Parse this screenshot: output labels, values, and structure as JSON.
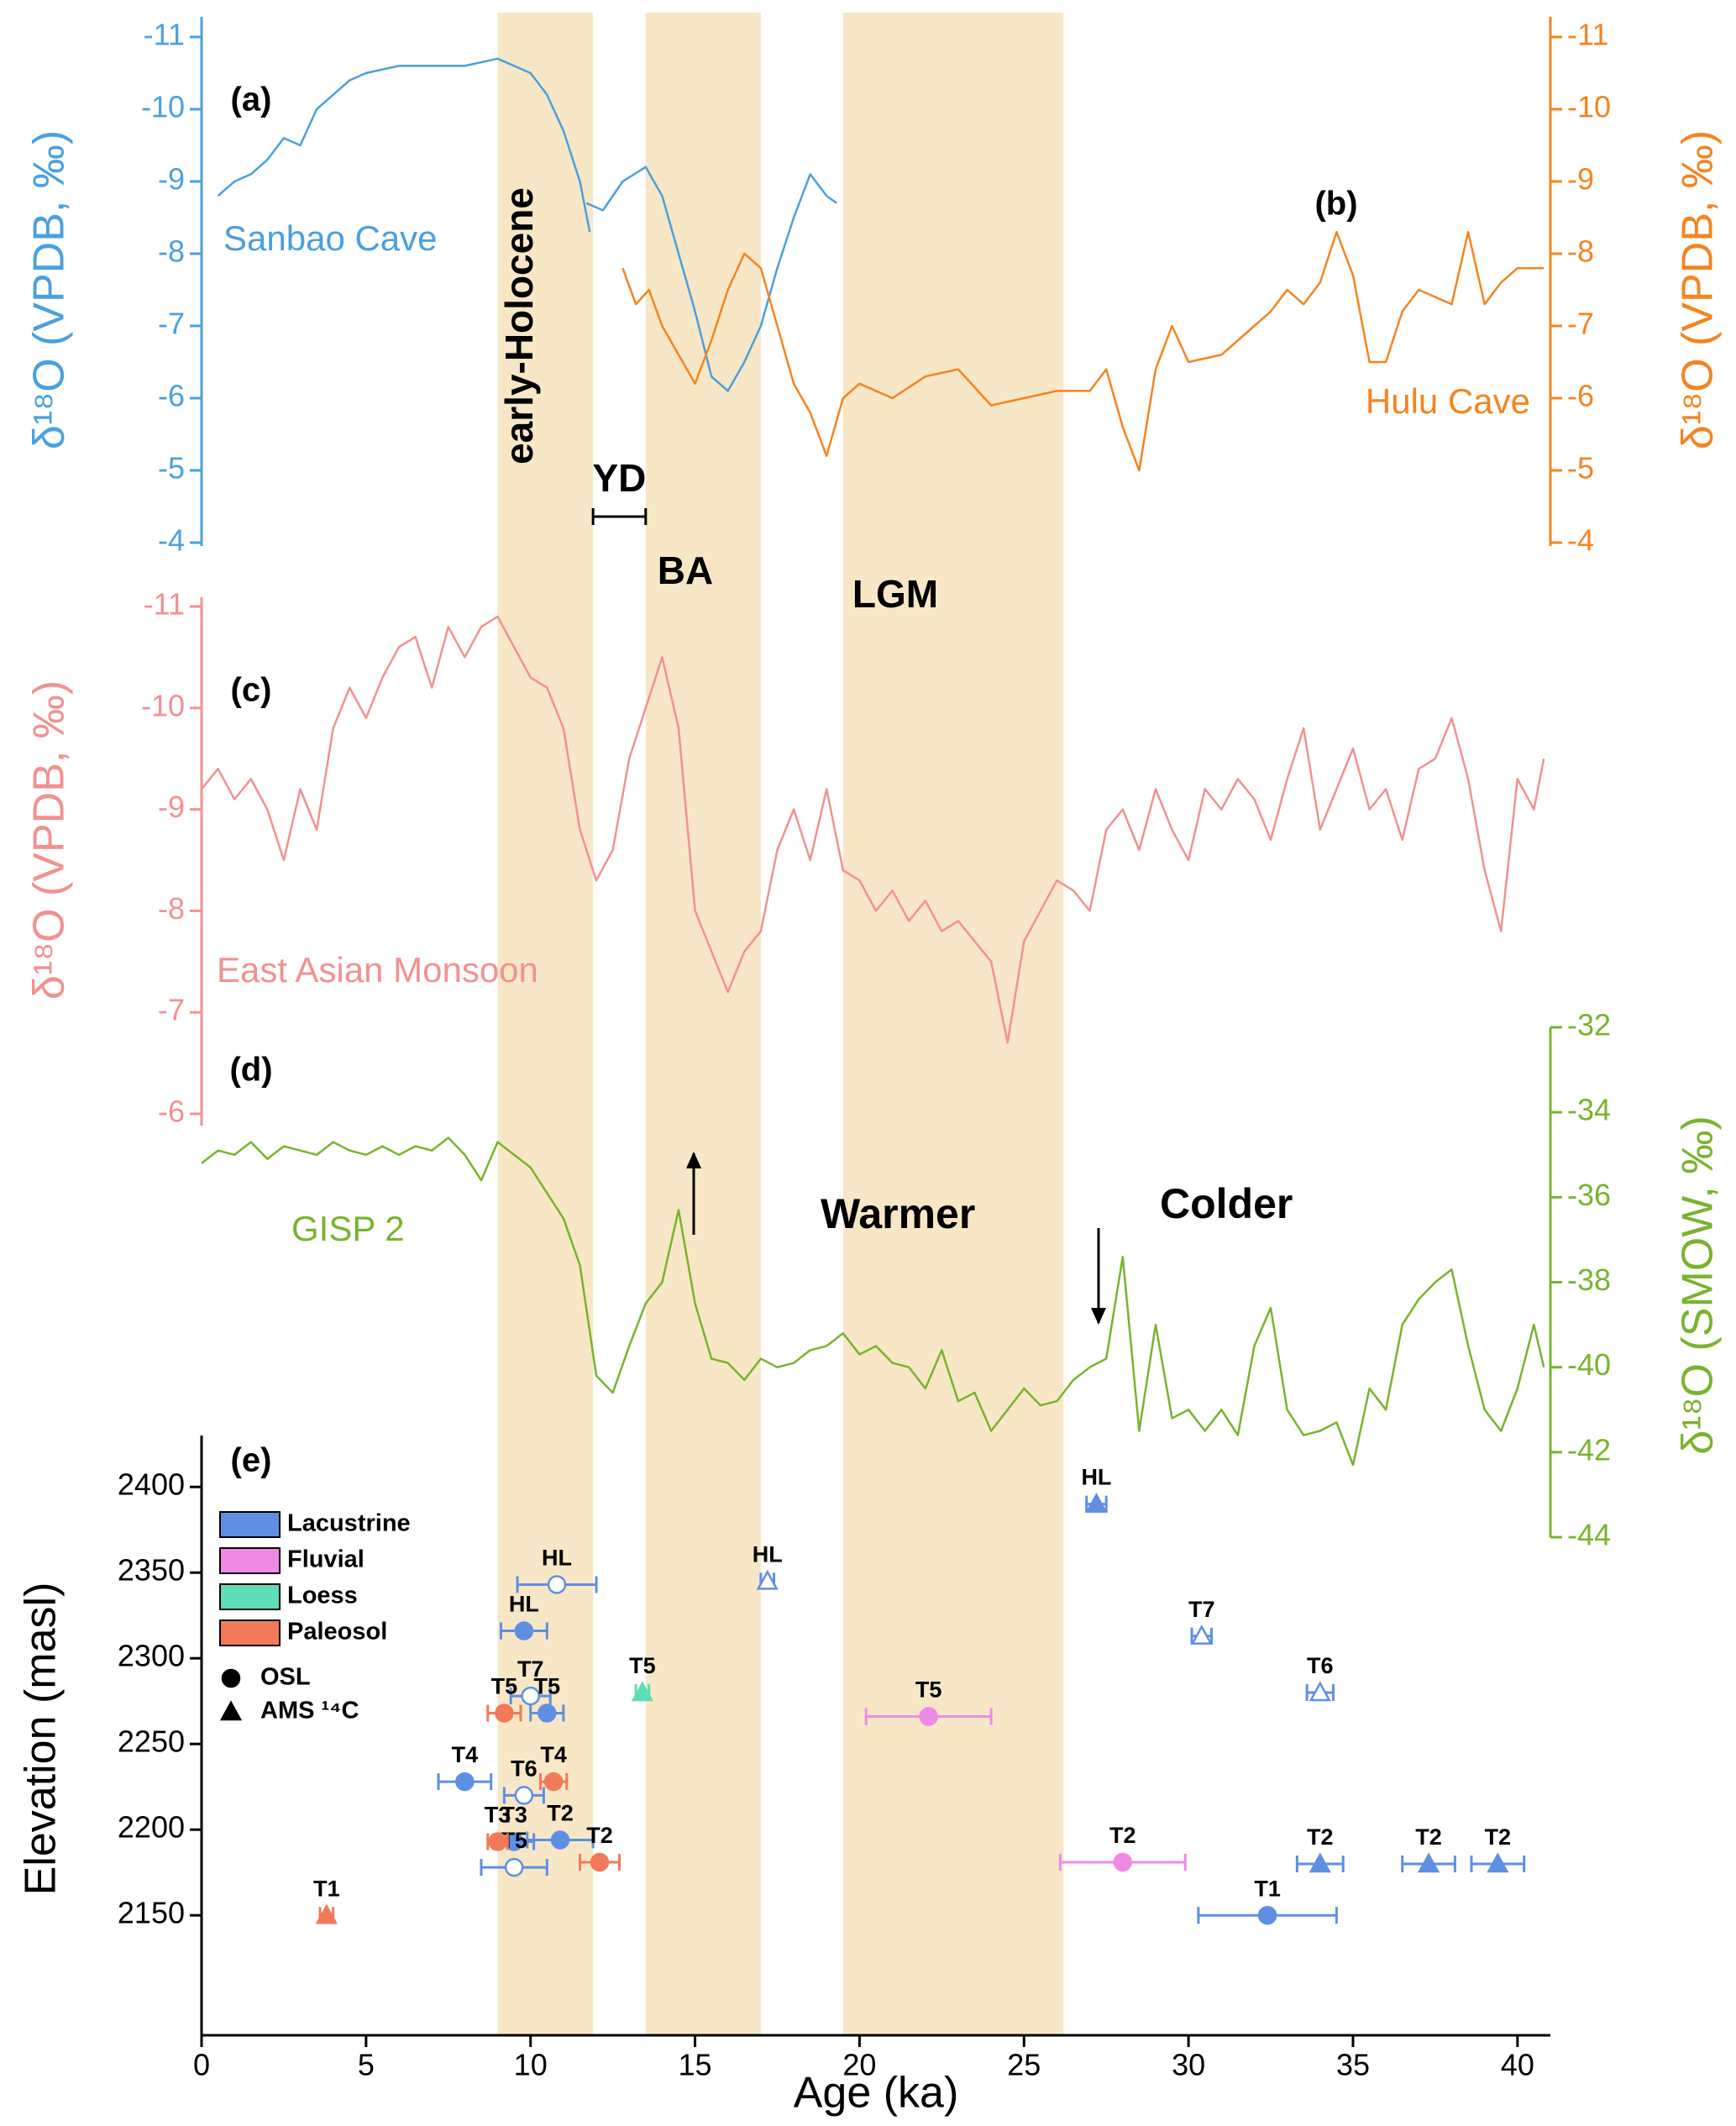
{
  "shaded_periods": [
    {
      "label": "early-Holocene",
      "start": 9,
      "end": 11.9
    },
    {
      "label": "BA",
      "start": 13.5,
      "end": 17
    },
    {
      "label": "LGM",
      "start": 19.5,
      "end": 26.2
    }
  ],
  "shade_color": "#f7e7c6",
  "bracket": {
    "label": "YD",
    "start": 11.9,
    "end": 13.5
  },
  "annotations": [
    "Warmer",
    "Colder"
  ],
  "chart_data": [
    {
      "type": "line",
      "panel_label": "(a)",
      "ylabel": "δ¹⁸O (VPDB, ‰)",
      "axis_side": "left",
      "ylim": [
        -4,
        -11
      ],
      "yticks": [
        -11,
        -10,
        -9,
        -8,
        -7,
        -6,
        -5,
        -4
      ],
      "series": [
        {
          "name": "Sanbao Cave",
          "color": "#4aa0de",
          "x": [
            0.5,
            1,
            1.5,
            2,
            2.5,
            3,
            3.5,
            4,
            4.5,
            5,
            6,
            7,
            8,
            9,
            10,
            10.5,
            11,
            11.5,
            11.8,
            11.75,
            11.7,
            12.2,
            12.8,
            13.5,
            14,
            14.5,
            15,
            15.5,
            16,
            16.5,
            17,
            17.5,
            18,
            18.5,
            19,
            19.3
          ],
          "values": [
            -8.8,
            -9,
            -9.1,
            -9.3,
            -9.6,
            -9.5,
            -10,
            -10.2,
            -10.4,
            -10.5,
            -10.6,
            -10.6,
            -10.6,
            -10.7,
            -10.5,
            -10.2,
            -9.7,
            -9,
            -8.3,
            null,
            -8.7,
            -8.6,
            -9,
            -9.2,
            -8.8,
            -8,
            -7.2,
            -6.3,
            -6.1,
            -6.5,
            -7,
            -7.8,
            -8.5,
            -9.1,
            -8.8,
            -8.7
          ]
        }
      ]
    },
    {
      "type": "line",
      "panel_label": "(b)",
      "ylabel": "δ¹⁸O (VPDB, ‰)",
      "axis_side": "right",
      "ylim": [
        -4,
        -11
      ],
      "yticks": [
        -11,
        -10,
        -9,
        -8,
        -7,
        -6,
        -5,
        -4
      ],
      "series": [
        {
          "name": "Hulu Cave",
          "color": "#f5841f",
          "x": [
            12.8,
            13.2,
            13.6,
            14,
            14.5,
            15,
            15.5,
            16,
            16.5,
            17,
            17.5,
            18,
            18.5,
            19,
            19.5,
            20,
            21,
            22,
            23,
            24,
            25,
            26,
            27,
            27.5,
            28,
            28.5,
            29,
            29.5,
            30,
            31,
            32,
            32.5,
            33,
            33.5,
            34,
            34.5,
            35,
            35.5,
            36,
            36.5,
            37,
            38,
            38.5,
            39,
            39.5,
            40,
            40.8
          ],
          "values": [
            -7.8,
            -7.3,
            -7.5,
            -7,
            -6.6,
            -6.2,
            -6.8,
            -7.5,
            -8,
            -7.8,
            -7,
            -6.2,
            -5.8,
            -5.2,
            -6,
            -6.2,
            -6,
            -6.3,
            -6.4,
            -5.9,
            -6,
            -6.1,
            -6.1,
            -6.4,
            -5.6,
            -5,
            -6.4,
            -7,
            -6.5,
            -6.6,
            -7,
            -7.2,
            -7.5,
            -7.3,
            -7.6,
            -8.3,
            -7.7,
            -6.5,
            -6.5,
            -7.2,
            -7.5,
            -7.3,
            -8.3,
            -7.3,
            -7.6,
            -7.8,
            -7.8
          ]
        }
      ]
    },
    {
      "type": "line",
      "panel_label": "(c)",
      "ylabel": "δ¹⁸O (VPDB, ‰)",
      "axis_side": "left",
      "ylim": [
        -6,
        -11
      ],
      "yticks": [
        -11,
        -10,
        -9,
        -8,
        -7,
        -6
      ],
      "series": [
        {
          "name": "East Asian Monsoon",
          "color": "#f29191",
          "x": [
            0,
            0.5,
            1,
            1.5,
            2,
            2.5,
            3,
            3.5,
            4,
            4.5,
            5,
            5.5,
            6,
            6.5,
            7,
            7.5,
            8,
            8.5,
            9,
            9.5,
            10,
            10.5,
            11,
            11.5,
            12,
            12.5,
            13,
            13.5,
            14,
            14.5,
            15,
            15.5,
            16,
            16.5,
            17,
            17.5,
            18,
            18.5,
            19,
            19.5,
            20,
            20.5,
            21,
            21.5,
            22,
            22.5,
            23,
            23.5,
            24,
            24.5,
            25,
            25.5,
            26,
            26.5,
            27,
            27.5,
            28,
            28.5,
            29,
            29.5,
            30,
            30.5,
            31,
            31.5,
            32,
            32.5,
            33,
            33.5,
            34,
            34.5,
            35,
            35.5,
            36,
            36.5,
            37,
            37.5,
            38,
            38.5,
            39,
            39.5,
            40,
            40.5,
            40.8
          ],
          "values": [
            -9.2,
            -9.4,
            -9.1,
            -9.3,
            -9,
            -8.5,
            -9.2,
            -8.8,
            -9.8,
            -10.2,
            -9.9,
            -10.3,
            -10.6,
            -10.7,
            -10.2,
            -10.8,
            -10.5,
            -10.8,
            -10.9,
            -10.6,
            -10.3,
            -10.2,
            -9.8,
            -8.8,
            -8.3,
            -8.6,
            -9.5,
            -10,
            -10.5,
            -9.8,
            -8,
            -7.6,
            -7.2,
            -7.6,
            -7.8,
            -8.6,
            -9,
            -8.5,
            -9.2,
            -8.4,
            -8.3,
            -8,
            -8.2,
            -7.9,
            -8.1,
            -7.8,
            -7.9,
            -7.7,
            -7.5,
            -6.7,
            -7.7,
            -8,
            -8.3,
            -8.2,
            -8,
            -8.8,
            -9,
            -8.6,
            -9.2,
            -8.8,
            -8.5,
            -9.2,
            -9,
            -9.3,
            -9.1,
            -8.7,
            -9.3,
            -9.8,
            -8.8,
            -9.2,
            -9.6,
            -9,
            -9.2,
            -8.7,
            -9.4,
            -9.5,
            -9.9,
            -9.3,
            -8.4,
            -7.8,
            -9.3,
            -9,
            -9.5
          ]
        }
      ]
    },
    {
      "type": "line",
      "panel_label": "(d)",
      "ylabel": "δ¹⁸O (SMOW, ‰)",
      "axis_side": "right",
      "ylim": [
        -44,
        -32
      ],
      "yticks": [
        -44,
        -42,
        -40,
        -38,
        -36,
        -34,
        -32
      ],
      "series": [
        {
          "name": "GISP 2",
          "color": "#79b32f",
          "x": [
            0,
            0.5,
            1,
            1.5,
            2,
            2.5,
            3,
            3.5,
            4,
            4.5,
            5,
            5.5,
            6,
            6.5,
            7,
            7.5,
            8,
            8.5,
            9,
            9.5,
            10,
            10.5,
            11,
            11.5,
            12,
            12.5,
            13,
            13.5,
            14,
            14.5,
            15,
            15.5,
            16,
            16.5,
            17,
            17.5,
            18,
            18.5,
            19,
            19.5,
            20,
            20.5,
            21,
            21.5,
            22,
            22.5,
            23,
            23.5,
            24,
            24.5,
            25,
            25.5,
            26,
            26.5,
            27,
            27.5,
            28,
            28.5,
            29,
            29.5,
            30,
            30.5,
            31,
            31.5,
            32,
            32.5,
            33,
            33.5,
            34,
            34.5,
            35,
            35.5,
            36,
            36.5,
            37,
            37.5,
            38,
            38.5,
            39,
            39.5,
            40,
            40.5,
            40.8
          ],
          "values": [
            -35.2,
            -34.9,
            -35,
            -34.7,
            -35.1,
            -34.8,
            -34.9,
            -35,
            -34.7,
            -34.9,
            -35,
            -34.8,
            -35,
            -34.8,
            -34.9,
            -34.6,
            -35,
            -35.6,
            -34.7,
            -35,
            -35.3,
            -35.9,
            -36.5,
            -37.6,
            -40.2,
            -40.6,
            -39.5,
            -38.5,
            -38,
            -36.3,
            -38.5,
            -39.8,
            -39.9,
            -40.3,
            -39.8,
            -40,
            -39.9,
            -39.6,
            -39.5,
            -39.2,
            -39.7,
            -39.5,
            -39.9,
            -40,
            -40.5,
            -39.6,
            -40.8,
            -40.6,
            -41.5,
            -41,
            -40.5,
            -40.9,
            -40.8,
            -40.3,
            -40,
            -39.8,
            -37.4,
            -41.5,
            -39,
            -41.2,
            -41,
            -41.5,
            -41,
            -41.6,
            -39.5,
            -38.6,
            -41,
            -41.6,
            -41.5,
            -41.3,
            -42.3,
            -40.5,
            -41,
            -39,
            -38.4,
            -38,
            -37.7,
            -39.5,
            -41,
            -41.5,
            -40.5,
            -39,
            -40
          ]
        }
      ]
    },
    {
      "type": "scatter",
      "panel_label": "(e)",
      "xlabel": "Age (ka)",
      "ylabel": "Elevation (masl)",
      "xlim": [
        0,
        41
      ],
      "xticks": [
        0,
        5,
        10,
        15,
        20,
        25,
        30,
        35,
        40
      ],
      "ylim": [
        2080,
        2430
      ],
      "yticks": [
        2150,
        2200,
        2250,
        2300,
        2350,
        2400
      ],
      "marker_legend": [
        {
          "label": "OSL",
          "marker": "circle"
        },
        {
          "label": "AMS ¹⁴C",
          "marker": "triangle"
        }
      ],
      "series": [
        {
          "name": "Lacustrine",
          "color": "#5f8fe3",
          "x": [
            27.2,
            10.8,
            17.2,
            9.8,
            30.4,
            34,
            10,
            10.5,
            8,
            9.8,
            9.5,
            10.9,
            9.5,
            32.4,
            34,
            37.3,
            39.4
          ],
          "values": [
            2390,
            2343,
            2345,
            2316,
            2313,
            2280,
            2278,
            2268,
            2228,
            2220,
            2193,
            2194,
            2178,
            2150,
            2180,
            2180,
            2180
          ],
          "xerr": [
            0.3,
            1.2,
            0.2,
            0.7,
            0.3,
            0.4,
            0.6,
            0.5,
            0.8,
            0.6,
            0.6,
            1,
            1,
            2.1,
            0.7,
            0.8,
            0.8
          ],
          "markers": [
            "triangle",
            "circle",
            "triangle",
            "circle",
            "triangle",
            "triangle",
            "circle",
            "circle",
            "circle",
            "circle",
            "circle",
            "circle",
            "circle",
            "circle",
            "triangle",
            "triangle",
            "triangle"
          ],
          "open": [
            false,
            true,
            true,
            false,
            true,
            true,
            true,
            false,
            false,
            true,
            false,
            false,
            true,
            false,
            false,
            false,
            false
          ],
          "labels": [
            "HL",
            "HL",
            "HL",
            "HL",
            "T7",
            "T6",
            "T7",
            "T5",
            "T4",
            "T6",
            "T3",
            "T2",
            "T5",
            "T1",
            "T2",
            "T2",
            "T2"
          ]
        },
        {
          "name": "Fluvial",
          "color": "#ef8ae4",
          "x": [
            22.1,
            28
          ],
          "values": [
            2266,
            2181
          ],
          "xerr": [
            1.9,
            1.9
          ],
          "markers": [
            "circle",
            "circle"
          ],
          "open": [
            false,
            false
          ],
          "labels": [
            "T5",
            "T2"
          ]
        },
        {
          "name": "Loess",
          "color": "#5fdcb8",
          "x": [
            13.4
          ],
          "values": [
            2280
          ],
          "xerr": [
            0.2
          ],
          "markers": [
            "triangle"
          ],
          "open": [
            false
          ],
          "labels": [
            "T5"
          ]
        },
        {
          "name": "Paleosol",
          "color": "#f07a5a",
          "x": [
            3.8,
            10.7,
            9.2,
            9,
            12.1
          ],
          "values": [
            2150,
            2228,
            2268,
            2193,
            2181
          ],
          "xerr": [
            0.2,
            0.4,
            0.5,
            0.3,
            0.6
          ],
          "markers": [
            "triangle",
            "circle",
            "circle",
            "circle",
            "circle"
          ],
          "open": [
            false,
            false,
            false,
            false,
            false
          ],
          "labels": [
            "T1",
            "T4",
            "T5",
            "T3",
            "T2"
          ]
        }
      ]
    }
  ]
}
